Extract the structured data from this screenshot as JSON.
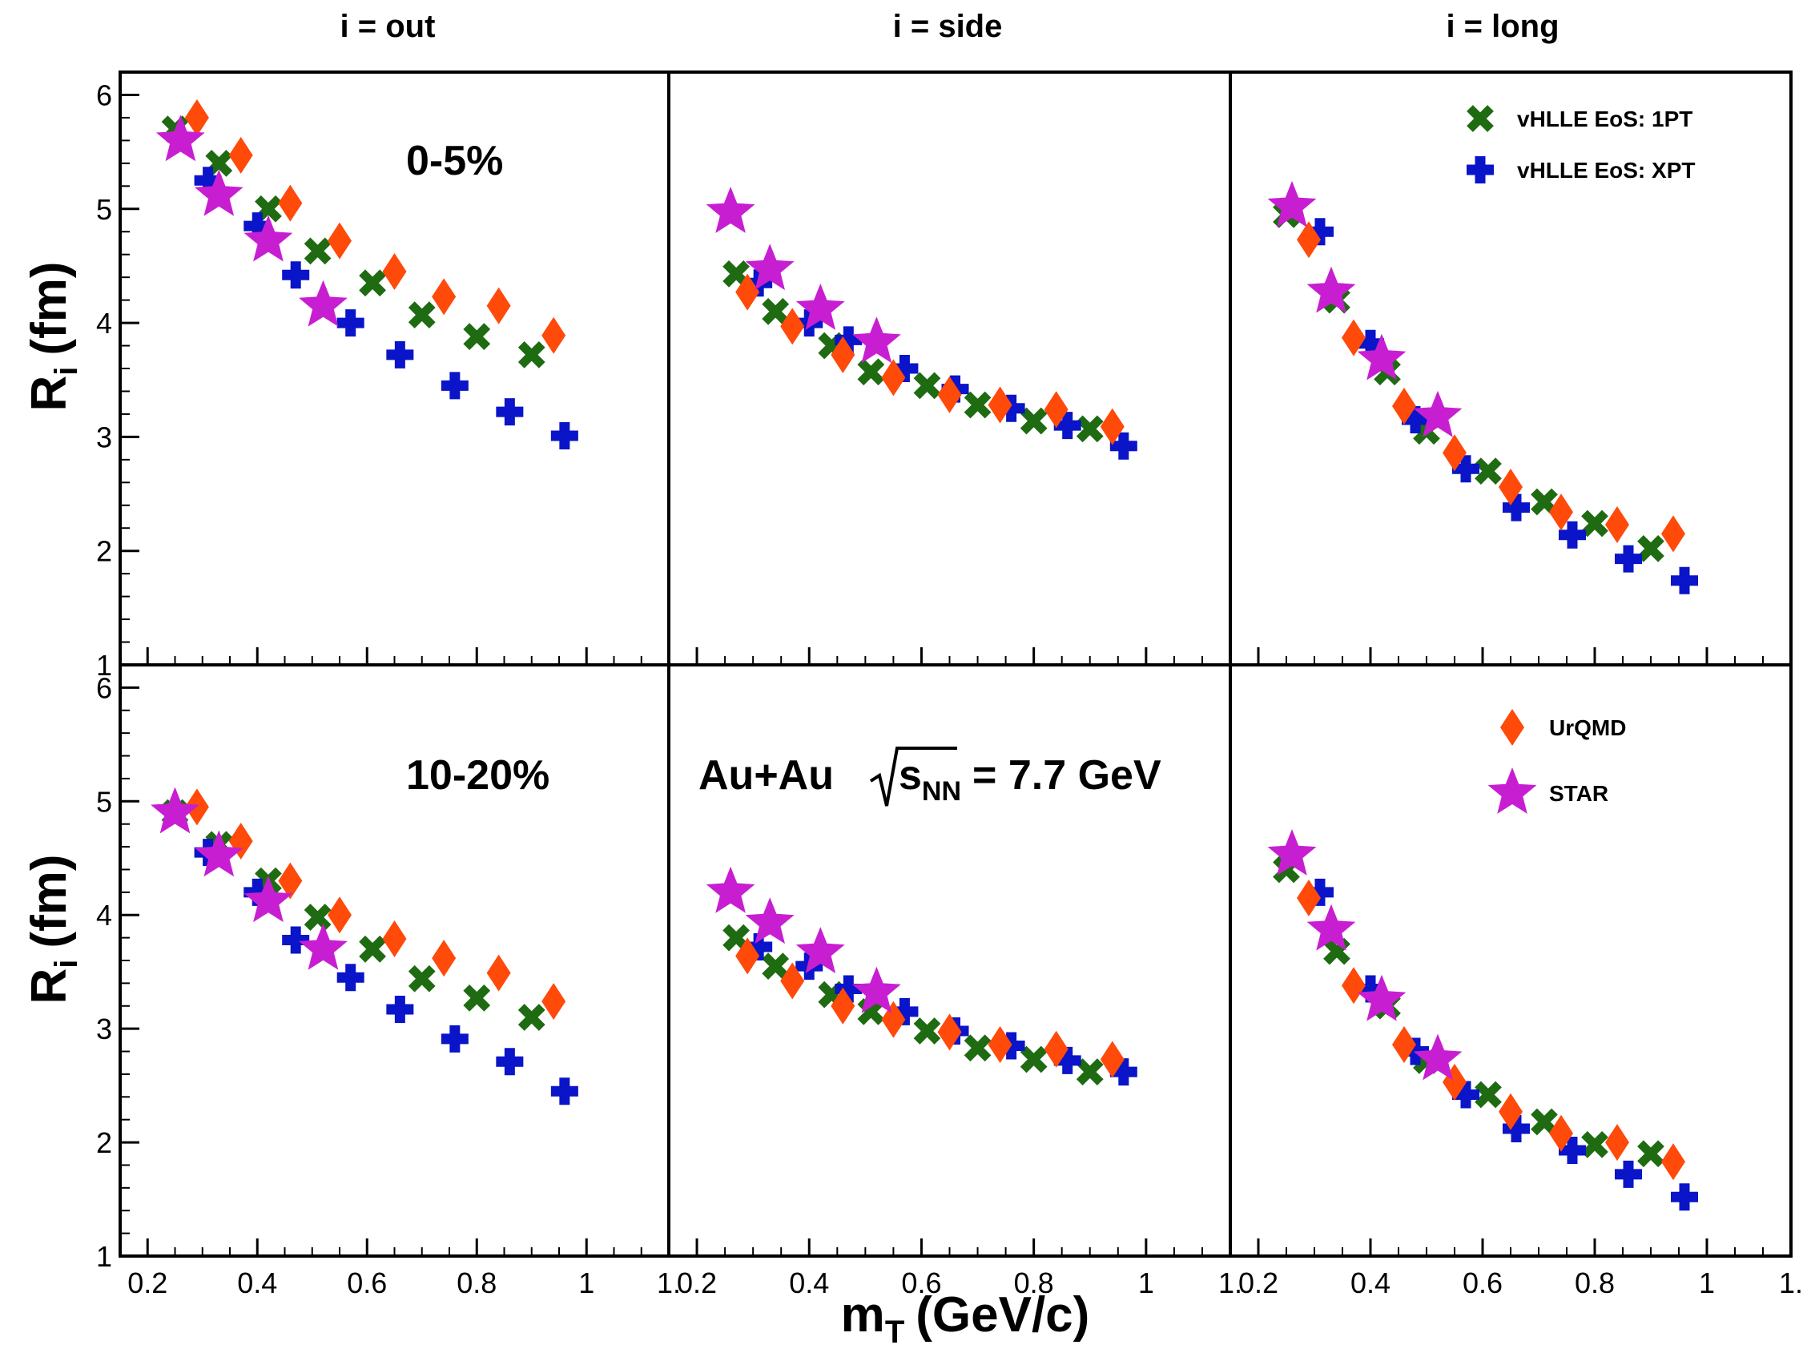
{
  "chart_data": {
    "type": "scatter",
    "figure": {
      "column_titles": [
        "i = out",
        "i = side",
        "i = long"
      ],
      "ylabel": "R",
      "ylabel_sub": "i",
      "ylabel_unit": "(fm)",
      "xlabel": "m",
      "xlabel_sub": "T",
      "xlabel_unit": "(GeV/c)",
      "xlim": [
        0.15,
        1.15
      ],
      "ylim": [
        1,
        6.2
      ],
      "x_ticks": [
        {
          "value": 0.2,
          "label": "0.2"
        },
        {
          "value": 0.4,
          "label": "0.4"
        },
        {
          "value": 0.6,
          "label": "0.6"
        },
        {
          "value": 0.8,
          "label": "0.8"
        },
        {
          "value": 1.0,
          "label": "1"
        },
        {
          "value": 1.15,
          "label": "1."
        }
      ],
      "y_ticks_top": [
        {
          "value": 1,
          "label": "1"
        },
        {
          "value": 2,
          "label": "2"
        },
        {
          "value": 3,
          "label": "3"
        },
        {
          "value": 4,
          "label": "4"
        },
        {
          "value": 5,
          "label": "5"
        },
        {
          "value": 6,
          "label": "6"
        }
      ],
      "y_ticks_bottom": [
        {
          "value": 1,
          "label": "1"
        },
        {
          "value": 2,
          "label": "2"
        },
        {
          "value": 3,
          "label": "3"
        },
        {
          "value": 4,
          "label": "4"
        },
        {
          "value": 5,
          "label": "5"
        },
        {
          "value": 6,
          "label": "6"
        }
      ],
      "row_labels": [
        "0-5%",
        "10-20%"
      ],
      "system_label": {
        "prefix": "Au+Au",
        "s": "s",
        "s_sub": "NN",
        "suffix": "= 7.7 GeV"
      },
      "legend_top": [
        {
          "name": "vHLLE EoS: 1PT",
          "marker": "x",
          "color": "#1e6b12"
        },
        {
          "name": "vHLLE EoS: XPT",
          "marker": "cross",
          "color": "#0a14c8"
        }
      ],
      "legend_bottom": [
        {
          "name": "UrQMD",
          "marker": "diamond",
          "color": "#ff4a0a"
        },
        {
          "name": "STAR",
          "marker": "star",
          "color": "#c81ed2"
        }
      ]
    },
    "series_styles": {
      "vHLLE EoS: 1PT": {
        "marker": "x",
        "color": "#1e6b12"
      },
      "vHLLE EoS: XPT": {
        "marker": "cross",
        "color": "#0a14c8"
      },
      "UrQMD": {
        "marker": "diamond",
        "color": "#ff4a0a"
      },
      "STAR": {
        "marker": "star",
        "color": "#c81ed2"
      }
    },
    "panels": [
      {
        "row": 0,
        "col": 0,
        "ylim": [
          1,
          6.2
        ],
        "series": [
          {
            "name": "vHLLE EoS: 1PT",
            "x": [
              0.25,
              0.33,
              0.42,
              0.51,
              0.61,
              0.7,
              0.8,
              0.9
            ],
            "y": [
              5.7,
              5.4,
              5.0,
              4.63,
              4.35,
              4.07,
              3.88,
              3.72
            ]
          },
          {
            "name": "vHLLE EoS: XPT",
            "x": [
              0.31,
              0.4,
              0.47,
              0.57,
              0.66,
              0.76,
              0.86,
              0.96
            ],
            "y": [
              5.25,
              4.85,
              4.42,
              4.0,
              3.72,
              3.45,
              3.22,
              3.01
            ]
          },
          {
            "name": "UrQMD",
            "x": [
              0.29,
              0.37,
              0.46,
              0.55,
              0.65,
              0.74,
              0.84,
              0.94
            ],
            "y": [
              5.8,
              5.47,
              5.05,
              4.72,
              4.45,
              4.23,
              4.15,
              3.89
            ]
          },
          {
            "name": "STAR",
            "x": [
              0.26,
              0.33,
              0.42,
              0.52
            ],
            "y": [
              5.6,
              5.12,
              4.72,
              4.15
            ]
          }
        ]
      },
      {
        "row": 0,
        "col": 1,
        "ylim": [
          1,
          6.2
        ],
        "series": [
          {
            "name": "vHLLE EoS: 1PT",
            "x": [
              0.27,
              0.34,
              0.44,
              0.51,
              0.61,
              0.7,
              0.8,
              0.9
            ],
            "y": [
              4.43,
              4.1,
              3.8,
              3.57,
              3.45,
              3.28,
              3.14,
              3.07
            ]
          },
          {
            "name": "vHLLE EoS: XPT",
            "x": [
              0.31,
              0.4,
              0.47,
              0.57,
              0.66,
              0.76,
              0.86,
              0.96
            ],
            "y": [
              4.35,
              4.0,
              3.85,
              3.6,
              3.42,
              3.25,
              3.1,
              2.92
            ]
          },
          {
            "name": "UrQMD",
            "x": [
              0.29,
              0.37,
              0.46,
              0.55,
              0.65,
              0.74,
              0.84,
              0.94
            ],
            "y": [
              4.27,
              3.97,
              3.72,
              3.52,
              3.37,
              3.28,
              3.24,
              3.09
            ]
          },
          {
            "name": "STAR",
            "x": [
              0.26,
              0.33,
              0.42,
              0.52
            ],
            "y": [
              4.97,
              4.47,
              4.12,
              3.83
            ]
          }
        ]
      },
      {
        "row": 0,
        "col": 2,
        "ylim": [
          1,
          6.2
        ],
        "series": [
          {
            "name": "vHLLE EoS: 1PT",
            "x": [
              0.25,
              0.34,
              0.43,
              0.5,
              0.61,
              0.71,
              0.8,
              0.9
            ],
            "y": [
              4.95,
              4.2,
              3.57,
              3.05,
              2.7,
              2.43,
              2.24,
              2.02
            ]
          },
          {
            "name": "vHLLE EoS: XPT",
            "x": [
              0.31,
              0.4,
              0.48,
              0.57,
              0.66,
              0.76,
              0.86,
              0.96
            ],
            "y": [
              4.8,
              3.82,
              3.15,
              2.72,
              2.38,
              2.14,
              1.93,
              1.74
            ]
          },
          {
            "name": "UrQMD",
            "x": [
              0.29,
              0.37,
              0.46,
              0.55,
              0.65,
              0.74,
              0.84,
              0.94
            ],
            "y": [
              4.73,
              3.87,
              3.27,
              2.86,
              2.56,
              2.34,
              2.23,
              2.15
            ]
          },
          {
            "name": "STAR",
            "x": [
              0.26,
              0.33,
              0.42,
              0.52
            ],
            "y": [
              5.02,
              4.27,
              3.68,
              3.18
            ]
          }
        ]
      },
      {
        "row": 1,
        "col": 0,
        "ylim": [
          1,
          6.2
        ],
        "series": [
          {
            "name": "vHLLE EoS: 1PT",
            "x": [
              0.25,
              0.33,
              0.42,
              0.51,
              0.61,
              0.7,
              0.8,
              0.9
            ],
            "y": [
              4.9,
              4.62,
              4.3,
              3.98,
              3.7,
              3.44,
              3.27,
              3.1
            ]
          },
          {
            "name": "vHLLE EoS: XPT",
            "x": [
              0.31,
              0.4,
              0.47,
              0.57,
              0.66,
              0.76,
              0.86,
              0.96
            ],
            "y": [
              4.55,
              4.2,
              3.78,
              3.45,
              3.17,
              2.91,
              2.71,
              2.45
            ]
          },
          {
            "name": "UrQMD",
            "x": [
              0.29,
              0.37,
              0.46,
              0.55,
              0.65,
              0.74,
              0.84,
              0.94
            ],
            "y": [
              4.95,
              4.65,
              4.3,
              4.0,
              3.79,
              3.62,
              3.49,
              3.24
            ]
          },
          {
            "name": "STAR",
            "x": [
              0.25,
              0.33,
              0.42,
              0.52
            ],
            "y": [
              4.9,
              4.52,
              4.12,
              3.7
            ]
          }
        ]
      },
      {
        "row": 1,
        "col": 1,
        "ylim": [
          1,
          6.2
        ],
        "series": [
          {
            "name": "vHLLE EoS: 1PT",
            "x": [
              0.27,
              0.34,
              0.44,
              0.51,
              0.61,
              0.7,
              0.8,
              0.9
            ],
            "y": [
              3.8,
              3.55,
              3.3,
              3.15,
              2.98,
              2.83,
              2.73,
              2.62
            ]
          },
          {
            "name": "vHLLE EoS: XPT",
            "x": [
              0.31,
              0.4,
              0.47,
              0.57,
              0.66,
              0.76,
              0.86,
              0.96
            ],
            "y": [
              3.72,
              3.55,
              3.35,
              3.15,
              2.98,
              2.85,
              2.72,
              2.62
            ]
          },
          {
            "name": "UrQMD",
            "x": [
              0.29,
              0.37,
              0.46,
              0.55,
              0.65,
              0.74,
              0.84,
              0.94
            ],
            "y": [
              3.64,
              3.42,
              3.2,
              3.08,
              2.97,
              2.86,
              2.82,
              2.73
            ]
          },
          {
            "name": "STAR",
            "x": [
              0.26,
              0.33,
              0.42,
              0.52
            ],
            "y": [
              4.2,
              3.93,
              3.67,
              3.32
            ]
          }
        ]
      },
      {
        "row": 1,
        "col": 2,
        "ylim": [
          1,
          6.2
        ],
        "series": [
          {
            "name": "vHLLE EoS: 1PT",
            "x": [
              0.25,
              0.34,
              0.43,
              0.5,
              0.61,
              0.71,
              0.8,
              0.9
            ],
            "y": [
              4.4,
              3.68,
              3.2,
              2.72,
              2.42,
              2.18,
              1.98,
              1.9
            ]
          },
          {
            "name": "vHLLE EoS: XPT",
            "x": [
              0.31,
              0.4,
              0.48,
              0.57,
              0.66,
              0.76,
              0.86,
              0.96
            ],
            "y": [
              4.2,
              3.35,
              2.8,
              2.42,
              2.12,
              1.93,
              1.72,
              1.52
            ]
          },
          {
            "name": "UrQMD",
            "x": [
              0.29,
              0.37,
              0.46,
              0.55,
              0.65,
              0.74,
              0.84,
              0.94
            ],
            "y": [
              4.15,
              3.38,
              2.86,
              2.53,
              2.27,
              2.08,
              2.0,
              1.83
            ]
          },
          {
            "name": "STAR",
            "x": [
              0.26,
              0.33,
              0.42,
              0.52
            ],
            "y": [
              4.53,
              3.87,
              3.25,
              2.73
            ]
          }
        ]
      }
    ]
  }
}
